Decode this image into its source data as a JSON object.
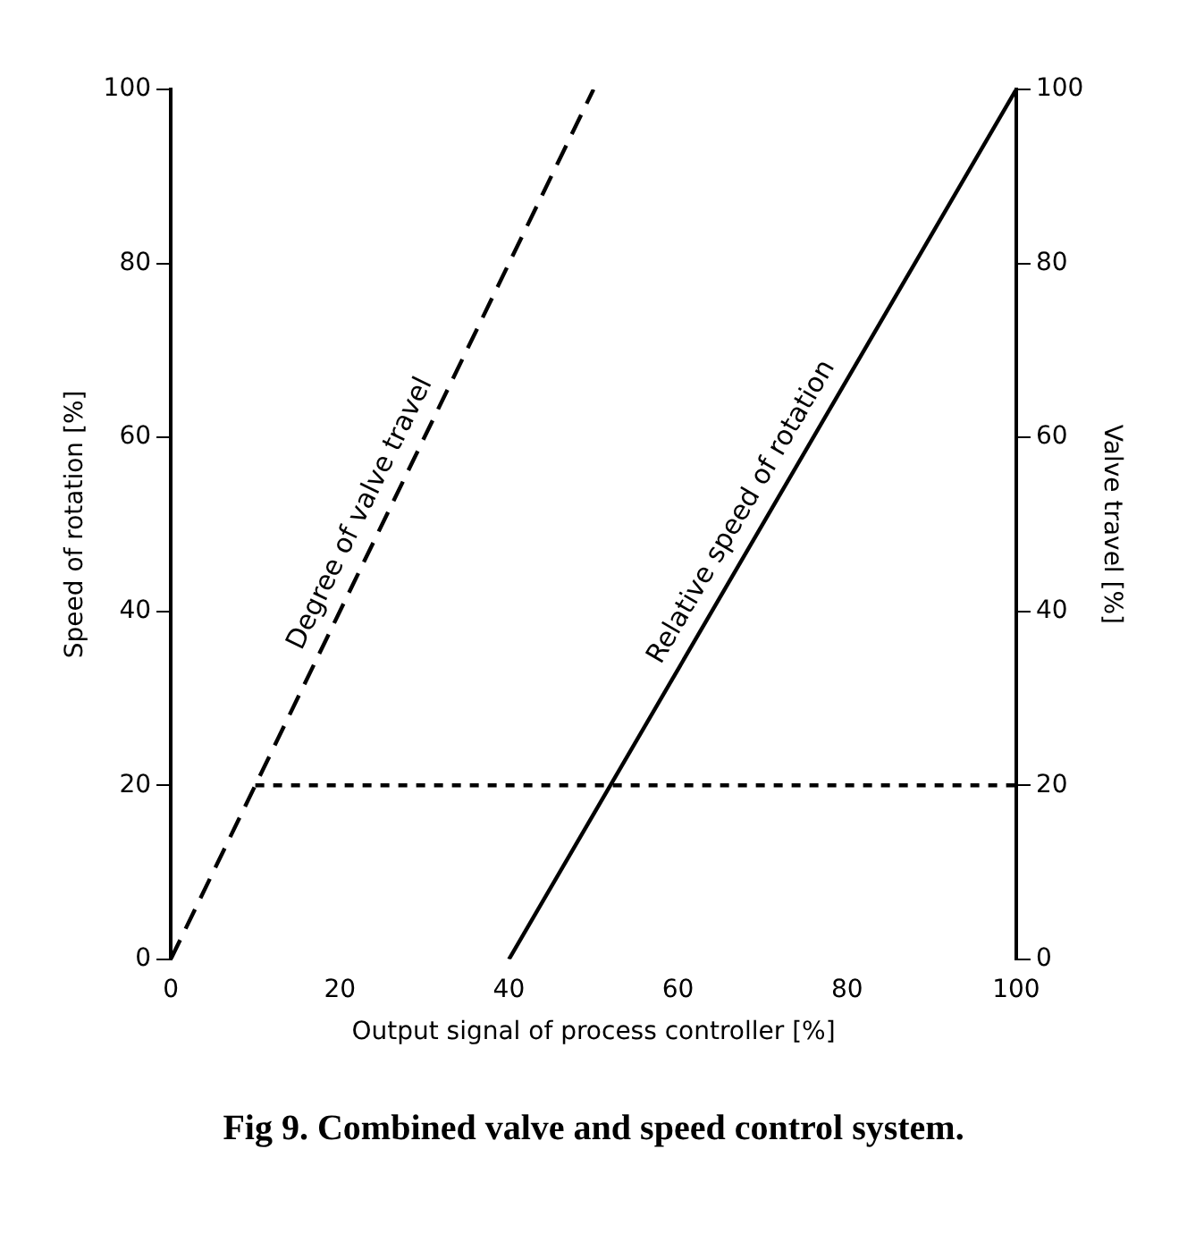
{
  "chart_data": {
    "type": "line",
    "title": "Fig 9. Combined valve and speed control system.",
    "xlabel": "Output signal of process controller [%]",
    "ylabel": "Speed of rotation [%]",
    "y2label": "Valve travel [%]",
    "xlim": [
      0,
      100
    ],
    "xticks": [
      0,
      20,
      40,
      60,
      80,
      100
    ],
    "ylim": [
      0,
      100
    ],
    "yticks": [
      0,
      20,
      40,
      60,
      80,
      100
    ],
    "y2lim": [
      0,
      100
    ],
    "y2ticks": [
      0,
      20,
      40,
      60,
      80,
      100
    ],
    "series": [
      {
        "name": "Degree of valve travel",
        "color": "#000000",
        "x": [
          0,
          50
        ],
        "values": [
          0,
          100
        ],
        "line_style": "dashed"
      },
      {
        "name": "Relative speed of rotation",
        "color": "#000000",
        "x": [
          40,
          100
        ],
        "values": [
          0,
          100
        ],
        "line_style": "solid"
      },
      {
        "color": "#000000",
        "x": [
          10,
          100
        ],
        "values": [
          20,
          20
        ],
        "line_style": "dotted"
      }
    ],
    "grid": false,
    "legend": false,
    "marker": "none"
  }
}
